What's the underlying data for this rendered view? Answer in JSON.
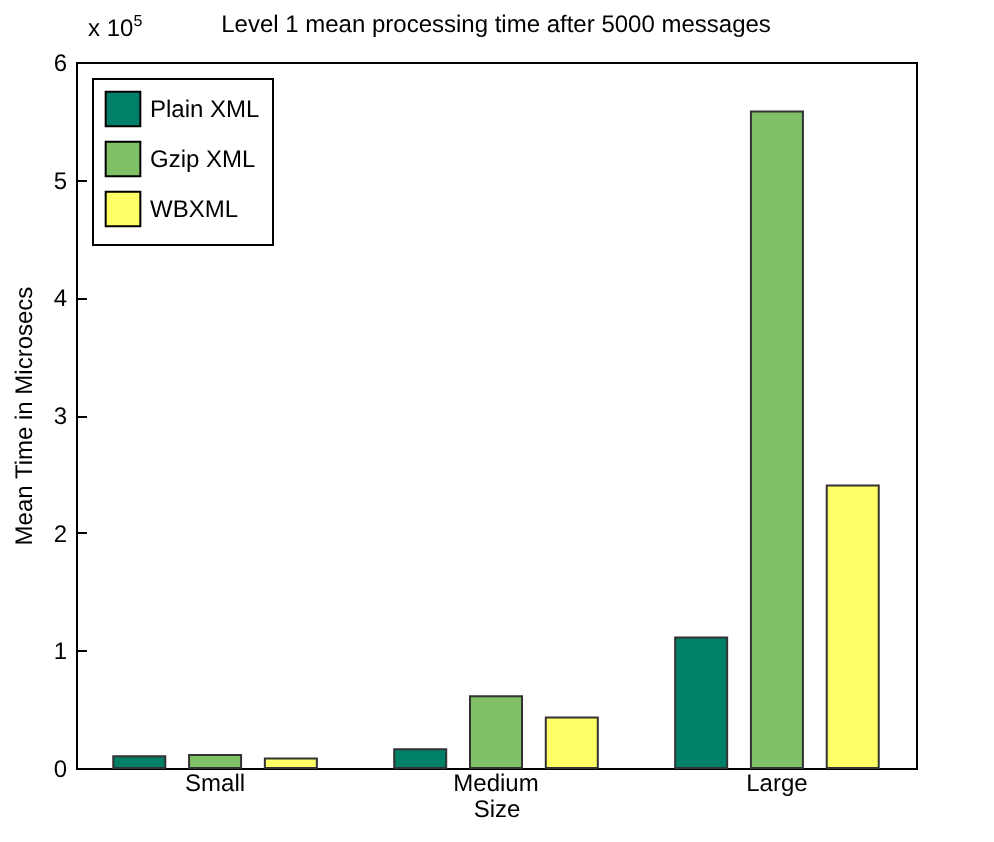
{
  "chart_data": {
    "type": "bar",
    "title": "Level 1 mean processing time after 5000 messages",
    "xlabel": "Size",
    "ylabel": "Mean Time in Microsecs",
    "annotations": [
      "x 10$^{5}$"
    ],
    "categories": [
      "Small",
      "Medium",
      "Large"
    ],
    "series": [
      {
        "name": "Plain XML",
        "color": "#008066",
        "values": [
          0.1,
          0.16,
          1.11
        ]
      },
      {
        "name": "Gzip XML",
        "color": "#80c066",
        "values": [
          0.11,
          0.61,
          5.58
        ]
      },
      {
        "name": "WBXML",
        "color": "#ffff66",
        "values": [
          0.08,
          0.43,
          2.4
        ]
      }
    ],
    "ylim": [
      0,
      6
    ],
    "yticks": [
      0,
      1,
      2,
      3,
      4,
      5,
      6
    ],
    "grid": false,
    "legend": "top left"
  }
}
